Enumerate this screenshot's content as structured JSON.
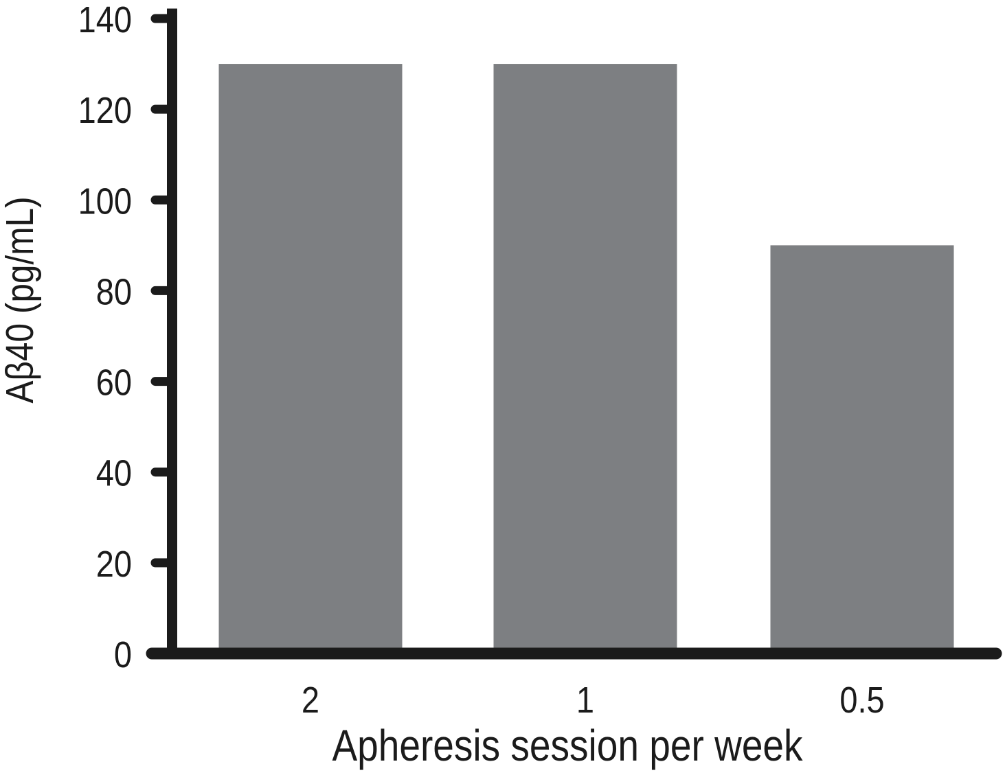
{
  "figure": {
    "background_color": "#ffffff",
    "axis_color": "#1b1b1b",
    "bar_color": "#7d7f82"
  },
  "chart_data": {
    "type": "bar",
    "categories": [
      "2",
      "1",
      "0.5"
    ],
    "values": [
      130,
      130,
      90
    ],
    "title": "",
    "xlabel": "Apheresis session per week",
    "ylabel": "Aβ40 (pg/mL)",
    "ylim": [
      0,
      140
    ],
    "yticks": [
      0,
      20,
      40,
      60,
      80,
      100,
      120,
      140
    ],
    "grid": false,
    "legend": null
  }
}
